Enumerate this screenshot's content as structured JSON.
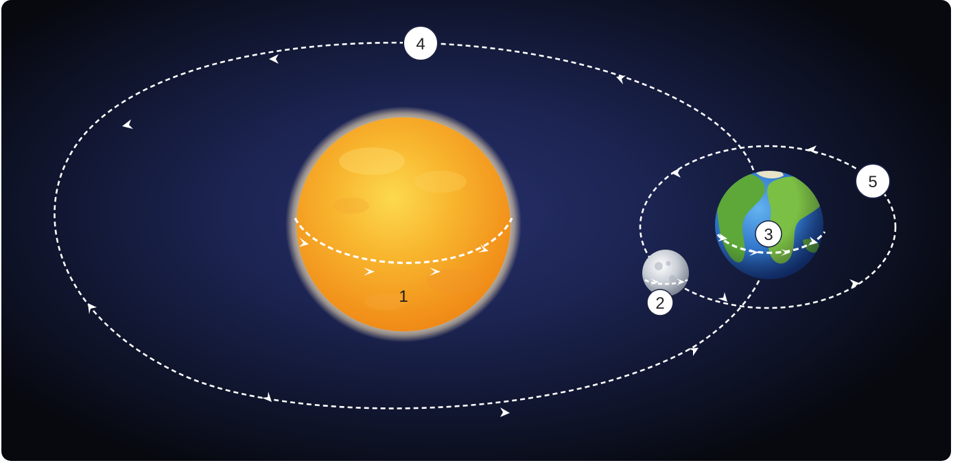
{
  "diagram": {
    "labels": {
      "sun": "1",
      "moon": "2",
      "earth": "3",
      "earth_orbit": "4",
      "moon_orbit": "5"
    },
    "colors": {
      "background_center": "#27306a",
      "background_edge": "#07090f",
      "sun_core": "#f9c53a",
      "sun_edge": "#f08a17",
      "path_stroke": "#ffffff",
      "ocean": "#2f74c9",
      "land": "#5da839"
    },
    "icons": [
      "sun-icon",
      "moon-icon",
      "earth-icon",
      "arrow-icon"
    ]
  }
}
